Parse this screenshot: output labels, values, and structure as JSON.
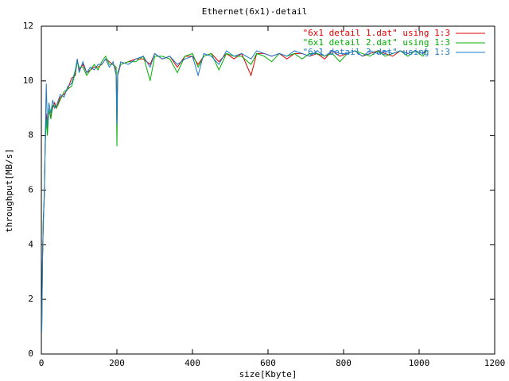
{
  "chart_data": {
    "type": "line",
    "title": "Ethernet(6x1)-detail",
    "x_label": "size[Kbyte]",
    "y_label": "throughput[MB/s]",
    "x": [
      1,
      3,
      5,
      8,
      10,
      13,
      16,
      20,
      25,
      30,
      35,
      40,
      50,
      60,
      70,
      80,
      90,
      95,
      100,
      110,
      120,
      130,
      140,
      150,
      160,
      170,
      180,
      190,
      198,
      200,
      202,
      210,
      230,
      250,
      270,
      288,
      300,
      320,
      340,
      360,
      380,
      400,
      415,
      430,
      450,
      470,
      490,
      510,
      530,
      555,
      570,
      590,
      610,
      630,
      650,
      670,
      690,
      710,
      730,
      750,
      770,
      790,
      810,
      830,
      850,
      870,
      890,
      910,
      930,
      950,
      970,
      990,
      1010,
      1020
    ],
    "series": [
      {
        "name": "\"6x1 detail 1.dat\" using 1:3",
        "color": "#e00000",
        "values": [
          0.8,
          3.5,
          4.8,
          6.0,
          7.5,
          8.8,
          8.2,
          8.9,
          8.7,
          9.0,
          9.2,
          9.0,
          9.4,
          9.5,
          9.7,
          10.1,
          10.2,
          10.8,
          10.4,
          10.6,
          10.3,
          10.4,
          10.5,
          10.5,
          10.6,
          10.8,
          10.7,
          10.6,
          10.4,
          8.5,
          10.2,
          10.6,
          10.7,
          10.8,
          10.8,
          10.6,
          11.0,
          10.8,
          10.9,
          10.5,
          10.9,
          10.9,
          10.6,
          10.9,
          11.0,
          10.7,
          11.0,
          10.8,
          11.0,
          10.2,
          11.0,
          11.0,
          10.9,
          11.0,
          10.8,
          11.0,
          11.0,
          10.9,
          11.0,
          10.8,
          11.1,
          10.9,
          11.0,
          11.1,
          10.9,
          11.0,
          11.1,
          11.0,
          10.9,
          11.1,
          11.0,
          11.1,
          11.0,
          11.1
        ]
      },
      {
        "name": "\"6x1 detail 2.dat\" using 1:3",
        "color": "#00b000",
        "values": [
          0.9,
          3.3,
          4.9,
          5.8,
          7.6,
          8.6,
          8.0,
          9.0,
          8.6,
          9.1,
          9.1,
          9.0,
          9.3,
          9.6,
          9.7,
          9.8,
          10.3,
          10.7,
          10.5,
          10.5,
          10.2,
          10.4,
          10.6,
          10.4,
          10.7,
          10.9,
          10.6,
          10.6,
          10.5,
          7.6,
          10.3,
          10.6,
          10.7,
          10.7,
          10.9,
          10.0,
          10.9,
          10.9,
          10.8,
          10.3,
          10.9,
          11.0,
          10.5,
          10.9,
          11.0,
          10.4,
          11.0,
          10.9,
          10.9,
          10.6,
          11.0,
          10.9,
          10.7,
          11.0,
          10.9,
          11.0,
          10.8,
          11.0,
          11.0,
          10.9,
          11.0,
          10.7,
          11.0,
          11.1,
          11.0,
          10.9,
          11.1,
          10.9,
          11.0,
          11.1,
          10.9,
          11.1,
          10.9,
          11.1
        ]
      },
      {
        "name": "\"6x1 detail 3.dat\" using 1:3",
        "color": "#1e78c8",
        "values": [
          0.8,
          3.4,
          4.7,
          5.9,
          7.7,
          9.9,
          8.3,
          9.2,
          8.8,
          9.3,
          9.0,
          9.1,
          9.5,
          9.4,
          9.8,
          9.9,
          10.4,
          10.8,
          10.3,
          10.7,
          10.3,
          10.5,
          10.4,
          10.6,
          10.6,
          10.8,
          10.5,
          10.7,
          10.2,
          8.4,
          10.2,
          10.7,
          10.6,
          10.8,
          10.9,
          10.5,
          11.0,
          10.8,
          10.9,
          10.6,
          10.8,
          10.9,
          10.2,
          11.0,
          10.9,
          10.6,
          11.1,
          10.9,
          11.0,
          10.8,
          11.1,
          11.0,
          10.9,
          11.0,
          10.9,
          11.1,
          11.0,
          10.9,
          11.1,
          10.9,
          11.1,
          11.0,
          11.0,
          11.1,
          10.9,
          11.1,
          11.0,
          11.1,
          11.0,
          11.1,
          11.0,
          11.1,
          11.0,
          11.2
        ]
      }
    ],
    "xlim": [
      0,
      1200
    ],
    "xticks": [
      0,
      200,
      400,
      600,
      800,
      1000,
      1200
    ],
    "ylim": [
      0,
      12
    ],
    "yticks": [
      0,
      2,
      4,
      6,
      8,
      10,
      12
    ],
    "legend": "upper right"
  }
}
